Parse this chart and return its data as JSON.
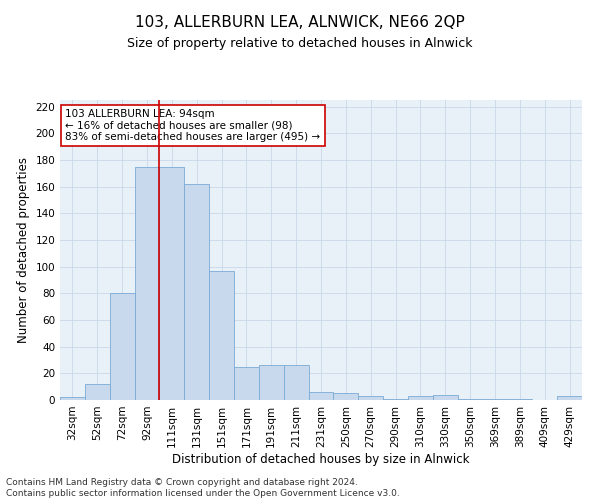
{
  "title": "103, ALLERBURN LEA, ALNWICK, NE66 2QP",
  "subtitle": "Size of property relative to detached houses in Alnwick",
  "xlabel": "Distribution of detached houses by size in Alnwick",
  "ylabel": "Number of detached properties",
  "categories": [
    "32sqm",
    "52sqm",
    "72sqm",
    "92sqm",
    "111sqm",
    "131sqm",
    "151sqm",
    "171sqm",
    "191sqm",
    "211sqm",
    "231sqm",
    "250sqm",
    "270sqm",
    "290sqm",
    "310sqm",
    "330sqm",
    "350sqm",
    "369sqm",
    "389sqm",
    "409sqm",
    "429sqm"
  ],
  "values": [
    2,
    12,
    80,
    175,
    175,
    162,
    97,
    25,
    26,
    26,
    6,
    5,
    3,
    1,
    3,
    4,
    1,
    1,
    1,
    0,
    3
  ],
  "bar_color": "#c9d9ed",
  "bar_edge_color": "#7aaad4",
  "vline_x_index": 3.5,
  "vline_color": "#cc0000",
  "annotation_text": "103 ALLERBURN LEA: 94sqm\n← 16% of detached houses are smaller (98)\n83% of semi-detached houses are larger (495) →",
  "annotation_box_color": "#ffffff",
  "annotation_box_edge": "#cc0000",
  "ylim": [
    0,
    225
  ],
  "yticks": [
    0,
    20,
    40,
    60,
    80,
    100,
    120,
    140,
    160,
    180,
    200,
    220
  ],
  "grid_color": "#c8d8e8",
  "background_color": "#e8f0f8",
  "footer": "Contains HM Land Registry data © Crown copyright and database right 2024.\nContains public sector information licensed under the Open Government Licence v3.0.",
  "title_fontsize": 11,
  "subtitle_fontsize": 9,
  "xlabel_fontsize": 8.5,
  "ylabel_fontsize": 8.5,
  "tick_fontsize": 7.5,
  "annotation_fontsize": 7.5,
  "footer_fontsize": 6.5
}
